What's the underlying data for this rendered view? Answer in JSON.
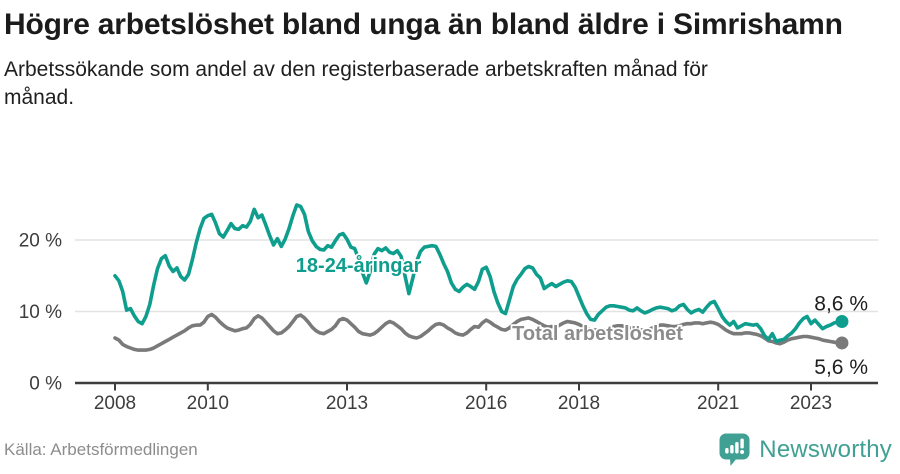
{
  "header": {
    "title": "Högre arbetslöshet bland unga än bland äldre i Simrishamn",
    "subtitle": "Arbetssökande som andel av den registerbaserade arbetskraften månad för månad."
  },
  "footer": {
    "source": "Källa: Arbetsförmedlingen",
    "brand": "Newsworthy",
    "logo_icon": "speech-bubble-bar-chart-icon"
  },
  "colors": {
    "young_series": "#0f9e8e",
    "total_series": "#7a7a7a",
    "total_label_gray": "#8c8c8c",
    "grid": "#e2e2e2",
    "axis": "#3d3d3d",
    "tick_text": "#3d3d3d",
    "value_text": "#1f1f1f",
    "title_text": "#1b1b1b",
    "source_text": "#8d8d8d",
    "brand_teal": "#3fa093",
    "background": "#ffffff"
  },
  "chart_data": {
    "type": "line",
    "title": "Högre arbetslöshet bland unga än bland äldre i Simrishamn",
    "subtitle": "Arbetssökande som andel av den registerbaserade arbetskraften månad för månad.",
    "xlabel": "",
    "ylabel": "",
    "unit": "%",
    "grid": "horizontal-only",
    "legend_position": "inline-annotations",
    "xlim": [
      2007.85,
      2024.2
    ],
    "ylim": [
      0,
      25.6
    ],
    "x_ticks": [
      {
        "v": 2008,
        "label": "2008"
      },
      {
        "v": 2010,
        "label": "2010"
      },
      {
        "v": 2013,
        "label": "2013"
      },
      {
        "v": 2016,
        "label": "2016"
      },
      {
        "v": 2018,
        "label": "2018"
      },
      {
        "v": 2021,
        "label": "2021"
      },
      {
        "v": 2023,
        "label": "2023"
      }
    ],
    "y_ticks": [
      {
        "v": 0,
        "label": "0 %"
      },
      {
        "v": 10,
        "label": "10 %"
      },
      {
        "v": 20,
        "label": "20 %"
      }
    ],
    "x_encoding": {
      "start_year": 2008,
      "step_months": 1
    },
    "series": [
      {
        "name": "18-24-åringar",
        "color": "#0f9e8e",
        "end_label": "8,6 %",
        "end_value": 8.6,
        "end_label_position": "above",
        "values": [
          15.0,
          14.3,
          12.8,
          10.2,
          10.4,
          9.4,
          8.6,
          8.3,
          9.3,
          11.0,
          13.7,
          16.0,
          17.4,
          17.8,
          16.4,
          15.6,
          16.1,
          14.9,
          14.4,
          15.2,
          17.2,
          19.6,
          21.6,
          23.0,
          23.4,
          23.6,
          22.4,
          20.9,
          20.4,
          21.3,
          22.3,
          21.6,
          21.5,
          22.0,
          21.8,
          22.6,
          24.3,
          23.1,
          23.5,
          22.1,
          20.6,
          19.3,
          20.2,
          19.1,
          20.1,
          21.6,
          23.4,
          24.9,
          24.7,
          23.6,
          21.2,
          19.9,
          19.1,
          18.7,
          18.6,
          19.2,
          19.0,
          19.9,
          20.7,
          20.9,
          20.1,
          19.0,
          18.8,
          17.4,
          15.4,
          14.0,
          15.6,
          18.0,
          18.8,
          18.5,
          18.9,
          18.3,
          18.1,
          18.5,
          17.7,
          15.0,
          12.5,
          14.6,
          17.0,
          18.4,
          19.0,
          19.1,
          19.2,
          19.1,
          18.0,
          16.7,
          15.6,
          14.0,
          13.1,
          12.8,
          13.4,
          13.8,
          13.5,
          13.1,
          14.2,
          15.9,
          16.2,
          14.9,
          12.8,
          11.2,
          10.0,
          9.7,
          11.6,
          13.5,
          14.5,
          15.2,
          16.0,
          16.3,
          16.1,
          15.2,
          14.7,
          13.2,
          13.6,
          13.9,
          13.5,
          13.8,
          14.1,
          14.3,
          14.2,
          13.4,
          12.1,
          10.8,
          9.7,
          8.9,
          8.8,
          9.6,
          10.1,
          10.6,
          10.8,
          10.8,
          10.7,
          10.6,
          10.5,
          10.2,
          10.1,
          10.5,
          10.1,
          9.8,
          10.0,
          10.3,
          10.5,
          10.6,
          10.5,
          10.4,
          10.1,
          10.3,
          10.8,
          11.0,
          10.3,
          9.8,
          10.1,
          10.3,
          9.9,
          10.6,
          11.2,
          11.4,
          10.4,
          9.3,
          8.6,
          8.1,
          8.6,
          7.7,
          8.0,
          8.3,
          8.2,
          8.1,
          8.2,
          7.6,
          6.6,
          6.1,
          6.9,
          5.8,
          6.0,
          6.1,
          6.6,
          7.0,
          7.6,
          8.4,
          9.0,
          9.3,
          8.3,
          8.8,
          8.2,
          7.6,
          7.9,
          8.1,
          8.4,
          8.5,
          8.6
        ]
      },
      {
        "name": "Total arbetslöshet",
        "color": "#7a7a7a",
        "end_label": "5,6 %",
        "end_value": 5.6,
        "end_label_position": "below",
        "values": [
          6.3,
          6.0,
          5.4,
          5.1,
          4.9,
          4.7,
          4.6,
          4.6,
          4.6,
          4.7,
          4.9,
          5.2,
          5.5,
          5.8,
          6.1,
          6.4,
          6.7,
          7.0,
          7.3,
          7.7,
          8.0,
          8.1,
          8.1,
          8.5,
          9.3,
          9.6,
          9.2,
          8.6,
          8.1,
          7.7,
          7.5,
          7.3,
          7.4,
          7.6,
          7.7,
          8.2,
          9.0,
          9.4,
          9.1,
          8.5,
          7.9,
          7.3,
          6.9,
          7.0,
          7.4,
          7.9,
          8.6,
          9.3,
          9.5,
          9.1,
          8.5,
          7.8,
          7.3,
          7.0,
          6.9,
          7.2,
          7.5,
          8.0,
          8.8,
          9.0,
          8.8,
          8.3,
          7.8,
          7.2,
          6.9,
          6.8,
          6.7,
          6.9,
          7.3,
          7.8,
          8.3,
          8.6,
          8.4,
          8.0,
          7.6,
          7.0,
          6.6,
          6.4,
          6.3,
          6.5,
          6.9,
          7.3,
          7.8,
          8.2,
          8.3,
          8.1,
          7.7,
          7.4,
          7.0,
          6.8,
          6.7,
          7.0,
          7.5,
          7.9,
          7.8,
          8.4,
          8.8,
          8.5,
          8.1,
          7.8,
          7.5,
          7.4,
          7.7,
          8.2,
          8.6,
          8.9,
          9.0,
          9.1,
          8.9,
          8.6,
          8.3,
          8.0,
          7.8,
          7.9,
          7.8,
          8.1,
          8.4,
          8.6,
          8.5,
          8.4,
          8.2,
          7.9,
          7.7,
          7.5,
          7.4,
          7.4,
          7.3,
          7.5,
          7.7,
          7.9,
          8.0,
          8.0,
          7.9,
          7.7,
          7.6,
          7.5,
          7.4,
          7.4,
          7.5,
          7.7,
          7.9,
          8.1,
          8.1,
          8.0,
          7.9,
          7.9,
          8.0,
          8.2,
          8.3,
          8.3,
          8.4,
          8.4,
          8.3,
          8.4,
          8.5,
          8.4,
          8.2,
          7.8,
          7.4,
          7.1,
          6.9,
          6.9,
          6.9,
          7.0,
          7.0,
          6.9,
          6.8,
          6.6,
          6.3,
          5.9,
          5.8,
          5.6,
          5.5,
          5.7,
          6.0,
          6.2,
          6.3,
          6.4,
          6.5,
          6.5,
          6.4,
          6.3,
          6.2,
          6.0,
          5.9,
          5.8,
          5.7,
          5.6,
          5.6
        ]
      }
    ],
    "annotations": [
      {
        "text": "18-24-åringar",
        "x": 2013.25,
        "y": 16.5,
        "color": "#0f9e8e"
      },
      {
        "text": "Total arbetslöshet",
        "x": 2018.4,
        "y": 7.0,
        "color": "#8c8c8c"
      }
    ]
  }
}
